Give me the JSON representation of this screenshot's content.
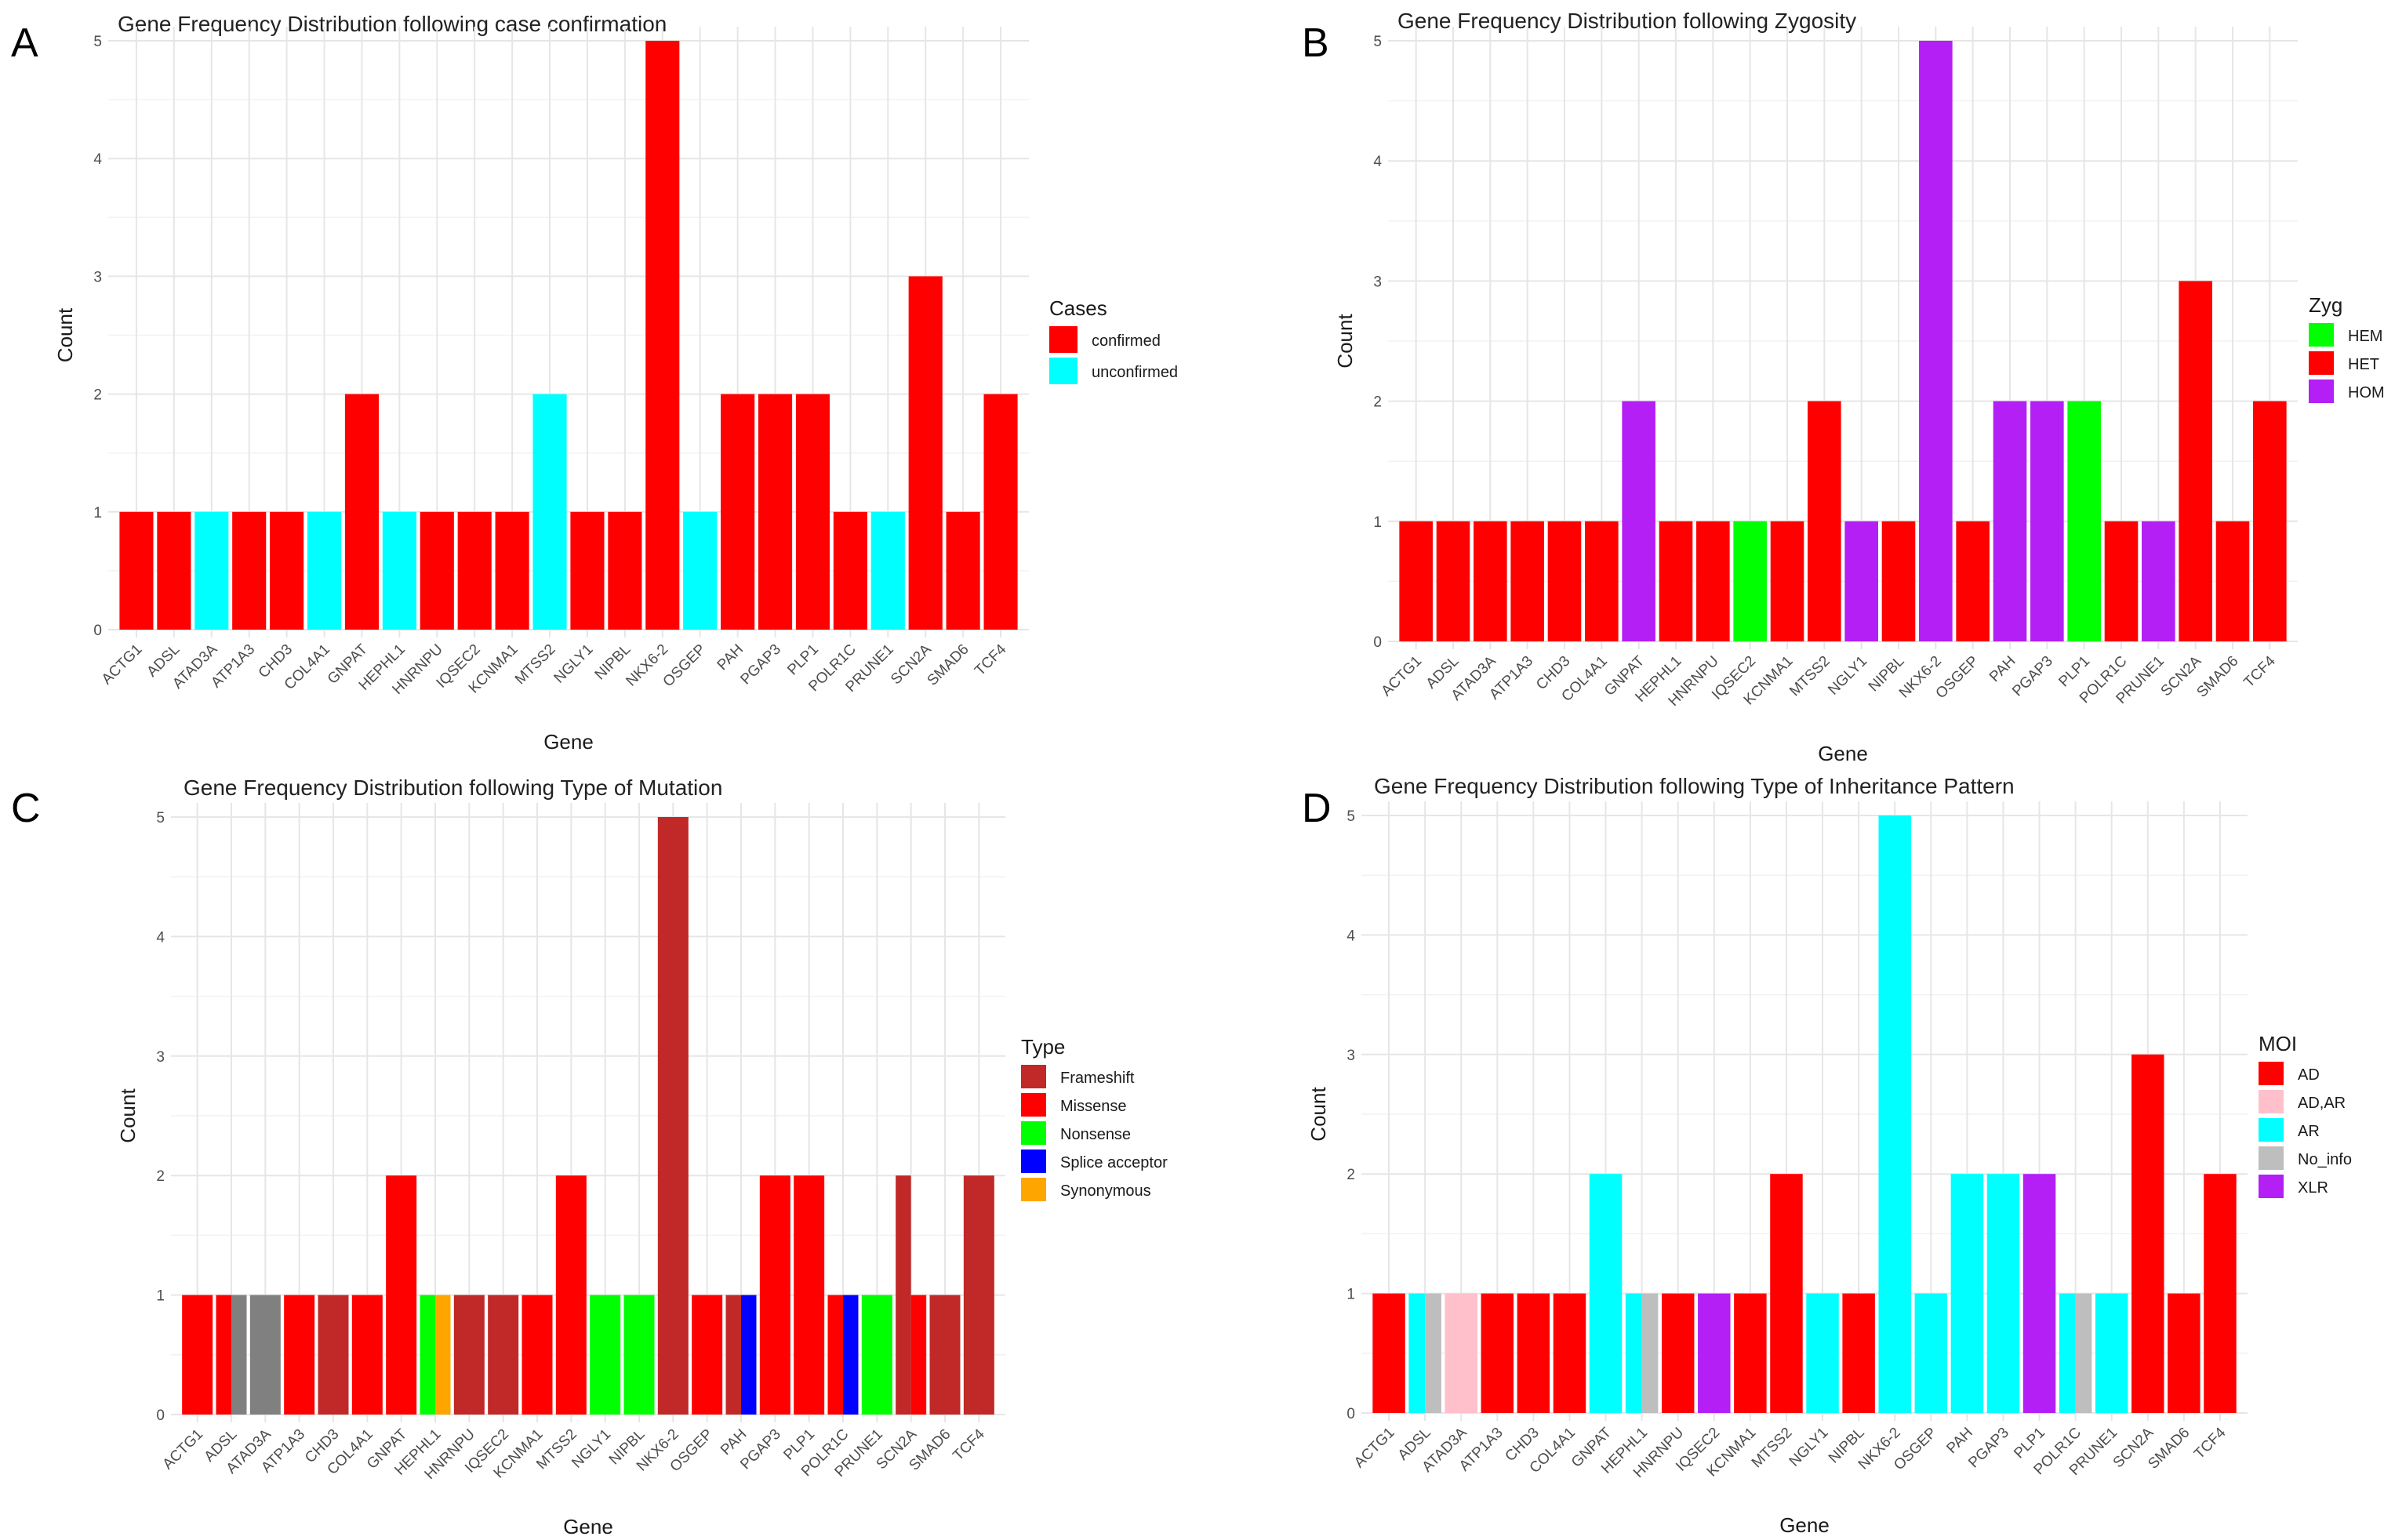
{
  "genes": [
    "ACTG1",
    "ADSL",
    "ATAD3A",
    "ATP1A3",
    "CHD3",
    "COL4A1",
    "GNPAT",
    "HEPHL1",
    "HNRNPU",
    "IQSEC2",
    "KCNMA1",
    "MTSS2",
    "NGLY1",
    "NIPBL",
    "NKX6-2",
    "OSGEP",
    "PAH",
    "PGAP3",
    "PLP1",
    "POLR1C",
    "PRUNE1",
    "SCN2A",
    "SMAD6",
    "TCF4"
  ],
  "chart_data": [
    {
      "id": "A",
      "letter": "A",
      "type": "bar",
      "title": "Gene Frequency Distribution following case confirmation",
      "xlabel": "Gene",
      "ylabel": "Count",
      "ylim": [
        0,
        5
      ],
      "yticks": [
        "0",
        "1",
        "2",
        "3",
        "4",
        "5"
      ],
      "legend_title": "Cases",
      "legend": [
        {
          "label": "confirmed",
          "color": "#ff0000"
        },
        {
          "label": "unconfirmed",
          "color": "#00ffff"
        }
      ],
      "bars": [
        [
          [
            1,
            "#ff0000"
          ]
        ],
        [
          [
            1,
            "#ff0000"
          ]
        ],
        [
          [
            1,
            "#00ffff"
          ]
        ],
        [
          [
            1,
            "#ff0000"
          ]
        ],
        [
          [
            1,
            "#ff0000"
          ]
        ],
        [
          [
            1,
            "#00ffff"
          ]
        ],
        [
          [
            2,
            "#ff0000"
          ]
        ],
        [
          [
            1,
            "#00ffff"
          ]
        ],
        [
          [
            1,
            "#ff0000"
          ]
        ],
        [
          [
            1,
            "#ff0000"
          ]
        ],
        [
          [
            1,
            "#ff0000"
          ]
        ],
        [
          [
            2,
            "#00ffff"
          ]
        ],
        [
          [
            1,
            "#ff0000"
          ]
        ],
        [
          [
            1,
            "#ff0000"
          ]
        ],
        [
          [
            5,
            "#ff0000"
          ]
        ],
        [
          [
            1,
            "#00ffff"
          ]
        ],
        [
          [
            2,
            "#ff0000"
          ]
        ],
        [
          [
            2,
            "#ff0000"
          ]
        ],
        [
          [
            2,
            "#ff0000"
          ]
        ],
        [
          [
            1,
            "#ff0000"
          ]
        ],
        [
          [
            1,
            "#00ffff"
          ]
        ],
        [
          [
            3,
            "#ff0000"
          ]
        ],
        [
          [
            1,
            "#ff0000"
          ]
        ],
        [
          [
            2,
            "#ff0000"
          ]
        ]
      ]
    },
    {
      "id": "B",
      "letter": "B",
      "type": "bar",
      "title": "Gene Frequency Distribution following Zygosity",
      "xlabel": "Gene",
      "ylabel": "Count",
      "ylim": [
        0,
        5
      ],
      "yticks": [
        "0",
        "1",
        "2",
        "3",
        "4",
        "5"
      ],
      "legend_title": "Zyg",
      "legend": [
        {
          "label": "HEM",
          "color": "#00ff00"
        },
        {
          "label": "HET",
          "color": "#ff0000"
        },
        {
          "label": "HOM",
          "color": "#b31ff5"
        }
      ],
      "bars": [
        [
          [
            1,
            "#ff0000"
          ]
        ],
        [
          [
            1,
            "#ff0000"
          ]
        ],
        [
          [
            1,
            "#ff0000"
          ]
        ],
        [
          [
            1,
            "#ff0000"
          ]
        ],
        [
          [
            1,
            "#ff0000"
          ]
        ],
        [
          [
            1,
            "#ff0000"
          ]
        ],
        [
          [
            2,
            "#b31ff5"
          ]
        ],
        [
          [
            1,
            "#ff0000"
          ]
        ],
        [
          [
            1,
            "#ff0000"
          ]
        ],
        [
          [
            1,
            "#00ff00"
          ]
        ],
        [
          [
            1,
            "#ff0000"
          ]
        ],
        [
          [
            2,
            "#ff0000"
          ]
        ],
        [
          [
            1,
            "#b31ff5"
          ]
        ],
        [
          [
            1,
            "#ff0000"
          ]
        ],
        [
          [
            5,
            "#b31ff5"
          ]
        ],
        [
          [
            1,
            "#ff0000"
          ]
        ],
        [
          [
            2,
            "#b31ff5"
          ]
        ],
        [
          [
            2,
            "#b31ff5"
          ]
        ],
        [
          [
            2,
            "#00ff00"
          ]
        ],
        [
          [
            1,
            "#ff0000"
          ]
        ],
        [
          [
            1,
            "#b31ff5"
          ]
        ],
        [
          [
            3,
            "#ff0000"
          ]
        ],
        [
          [
            1,
            "#ff0000"
          ]
        ],
        [
          [
            2,
            "#ff0000"
          ]
        ]
      ]
    },
    {
      "id": "C",
      "letter": "C",
      "type": "bar",
      "title": "Gene Frequency Distribution following Type of Mutation",
      "xlabel": "Gene",
      "ylabel": "Count",
      "ylim": [
        0,
        5
      ],
      "yticks": [
        "0",
        "1",
        "2",
        "3",
        "4",
        "5"
      ],
      "legend_title": "Type",
      "legend": [
        {
          "label": "Frameshift",
          "color": "#c12828"
        },
        {
          "label": "Missense",
          "color": "#ff0000"
        },
        {
          "label": "Nonsense",
          "color": "#00ff00"
        },
        {
          "label": "Splice acceptor",
          "color": "#0000ff"
        },
        {
          "label": "Synonymous",
          "color": "#ffa500"
        }
      ],
      "bars": [
        [
          [
            1,
            "#ff0000"
          ]
        ],
        [
          [
            1,
            "#ff0000"
          ],
          [
            1,
            "#808080"
          ]
        ],
        [
          [
            1,
            "#808080"
          ]
        ],
        [
          [
            1,
            "#ff0000"
          ]
        ],
        [
          [
            1,
            "#c12828"
          ]
        ],
        [
          [
            1,
            "#ff0000"
          ]
        ],
        [
          [
            2,
            "#ff0000"
          ]
        ],
        [
          [
            1,
            "#00ff00"
          ],
          [
            1,
            "#ffa500"
          ]
        ],
        [
          [
            1,
            "#c12828"
          ]
        ],
        [
          [
            1,
            "#c12828"
          ]
        ],
        [
          [
            1,
            "#ff0000"
          ]
        ],
        [
          [
            2,
            "#ff0000"
          ]
        ],
        [
          [
            1,
            "#00ff00"
          ]
        ],
        [
          [
            1,
            "#00ff00"
          ]
        ],
        [
          [
            5,
            "#c12828"
          ]
        ],
        [
          [
            1,
            "#ff0000"
          ]
        ],
        [
          [
            1,
            "#c12828"
          ],
          [
            1,
            "#0000ff"
          ]
        ],
        [
          [
            2,
            "#ff0000"
          ]
        ],
        [
          [
            2,
            "#ff0000"
          ]
        ],
        [
          [
            1,
            "#ff0000"
          ],
          [
            1,
            "#0000ff"
          ]
        ],
        [
          [
            1,
            "#00ff00"
          ]
        ],
        [
          [
            2,
            "#c12828"
          ],
          [
            1,
            "#ff0000"
          ]
        ],
        [
          [
            1,
            "#c12828"
          ]
        ],
        [
          [
            2,
            "#c12828"
          ]
        ]
      ]
    },
    {
      "id": "D",
      "letter": "D",
      "type": "bar",
      "title": "Gene Frequency Distribution following Type of Inheritance Pattern",
      "xlabel": "Gene",
      "ylabel": "Count",
      "ylim": [
        0,
        5
      ],
      "yticks": [
        "0",
        "1",
        "2",
        "3",
        "4",
        "5"
      ],
      "legend_title": "MOI",
      "legend": [
        {
          "label": "AD",
          "color": "#ff0000"
        },
        {
          "label": "AD,AR",
          "color": "#ffc0cb"
        },
        {
          "label": "AR",
          "color": "#00ffff"
        },
        {
          "label": "No_info",
          "color": "#bebebe"
        },
        {
          "label": "XLR",
          "color": "#b31ff5"
        }
      ],
      "bars": [
        [
          [
            1,
            "#ff0000"
          ]
        ],
        [
          [
            1,
            "#00ffff"
          ],
          [
            1,
            "#bebebe"
          ]
        ],
        [
          [
            1,
            "#ffc0cb"
          ]
        ],
        [
          [
            1,
            "#ff0000"
          ]
        ],
        [
          [
            1,
            "#ff0000"
          ]
        ],
        [
          [
            1,
            "#ff0000"
          ]
        ],
        [
          [
            2,
            "#00ffff"
          ]
        ],
        [
          [
            1,
            "#00ffff"
          ],
          [
            1,
            "#bebebe"
          ]
        ],
        [
          [
            1,
            "#ff0000"
          ]
        ],
        [
          [
            1,
            "#b31ff5"
          ]
        ],
        [
          [
            1,
            "#ff0000"
          ]
        ],
        [
          [
            2,
            "#ff0000"
          ]
        ],
        [
          [
            1,
            "#00ffff"
          ]
        ],
        [
          [
            1,
            "#ff0000"
          ]
        ],
        [
          [
            5,
            "#00ffff"
          ]
        ],
        [
          [
            1,
            "#00ffff"
          ]
        ],
        [
          [
            2,
            "#00ffff"
          ]
        ],
        [
          [
            2,
            "#00ffff"
          ]
        ],
        [
          [
            2,
            "#b31ff5"
          ]
        ],
        [
          [
            1,
            "#00ffff"
          ],
          [
            1,
            "#bebebe"
          ]
        ],
        [
          [
            1,
            "#00ffff"
          ]
        ],
        [
          [
            3,
            "#ff0000"
          ]
        ],
        [
          [
            1,
            "#ff0000"
          ]
        ],
        [
          [
            2,
            "#ff0000"
          ]
        ]
      ]
    }
  ]
}
